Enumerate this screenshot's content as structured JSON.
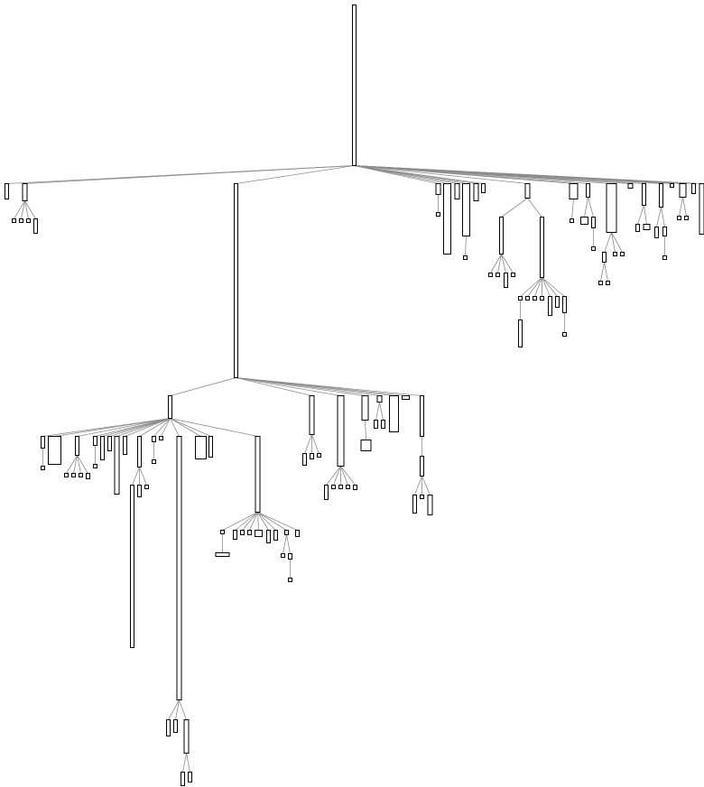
{
  "diagram": {
    "type": "tree",
    "node_shape": "rectangle",
    "labels_visible": false,
    "colors": {
      "background": "#ffffff",
      "node_stroke": "#000000",
      "node_fill": "#ffffff",
      "edge": "#8c8c8c"
    }
  }
}
